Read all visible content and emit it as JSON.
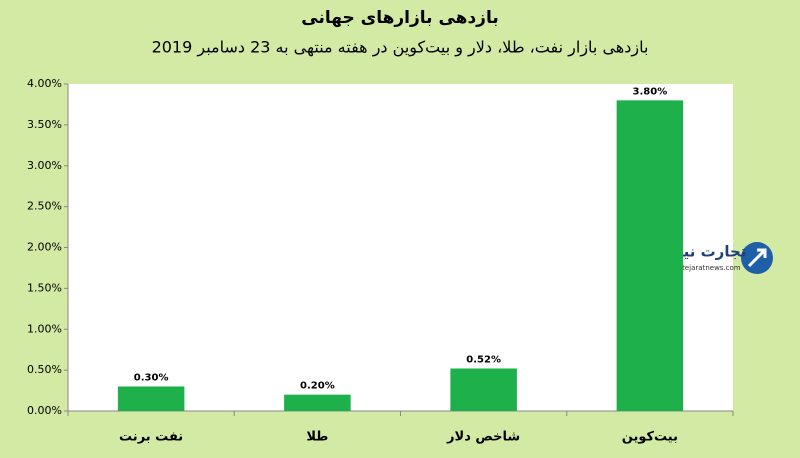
{
  "chart_data": {
    "type": "bar",
    "title": "بازدهی بازارهای جهانی",
    "subtitle": "بازدهی بازار نفت، طلا، دلار و بیت‌کوین در هفته منتهی به 23 دسامبر 2019",
    "categories": [
      "نفت برنت",
      "طلا",
      "شاخص دلار",
      "بیت‌کوین"
    ],
    "values": [
      0.3,
      0.2,
      0.52,
      3.8
    ],
    "value_labels": [
      "0.30%",
      "0.20%",
      "0.52%",
      "3.80%"
    ],
    "color": "#1db04b",
    "ylim": [
      0,
      4
    ],
    "yticks": [
      {
        "value": 0,
        "label": "0.00%"
      },
      {
        "value": 0.5,
        "label": "0.50%"
      },
      {
        "value": 1,
        "label": "1.00%"
      },
      {
        "value": 1.5,
        "label": "1.50%"
      },
      {
        "value": 2,
        "label": "2.00%"
      },
      {
        "value": 2.5,
        "label": "2.50%"
      },
      {
        "value": 3,
        "label": "3.00%"
      },
      {
        "value": 3.5,
        "label": "3.50%"
      },
      {
        "value": 4,
        "label": "4.00%"
      }
    ],
    "grid": false
  },
  "watermark": {
    "brand": "تجارت نیوز",
    "url": "www.tejaratnews.com"
  }
}
